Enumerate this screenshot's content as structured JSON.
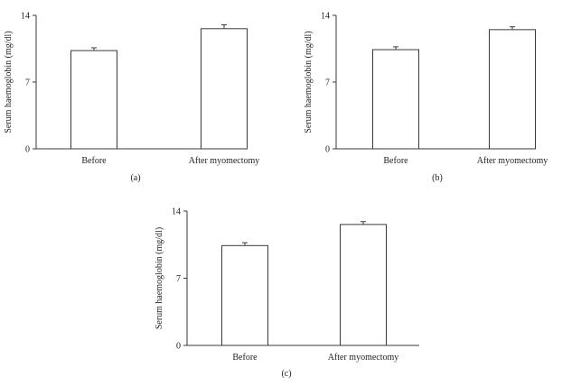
{
  "chart_data": [
    {
      "type": "bar",
      "panel": "(a)",
      "categories": [
        "Before",
        "After myomectomy"
      ],
      "values": [
        10.3,
        12.6
      ],
      "errors": [
        0.3,
        0.4
      ],
      "ylabel": "Serum haemoglobin (mg/dl)",
      "xlabel": "",
      "ylim": [
        0,
        14
      ],
      "yticks": [
        "0",
        "7",
        "14"
      ],
      "grid": false
    },
    {
      "type": "bar",
      "panel": "(b)",
      "categories": [
        "Before",
        "After myomectomy"
      ],
      "values": [
        10.4,
        12.5
      ],
      "errors": [
        0.3,
        0.3
      ],
      "ylabel": "Serum haemoglobin (mg/dl)",
      "xlabel": "",
      "ylim": [
        0,
        14
      ],
      "yticks": [
        "0",
        "7",
        "14"
      ],
      "grid": false
    },
    {
      "type": "bar",
      "panel": "(c)",
      "categories": [
        "Before",
        "After myomectomy"
      ],
      "values": [
        10.4,
        12.6
      ],
      "errors": [
        0.3,
        0.3
      ],
      "ylabel": "Serum haemoglobin (mg/dl)",
      "xlabel": "",
      "ylim": [
        0,
        14
      ],
      "yticks": [
        "0",
        "7",
        "14"
      ],
      "grid": false
    }
  ]
}
